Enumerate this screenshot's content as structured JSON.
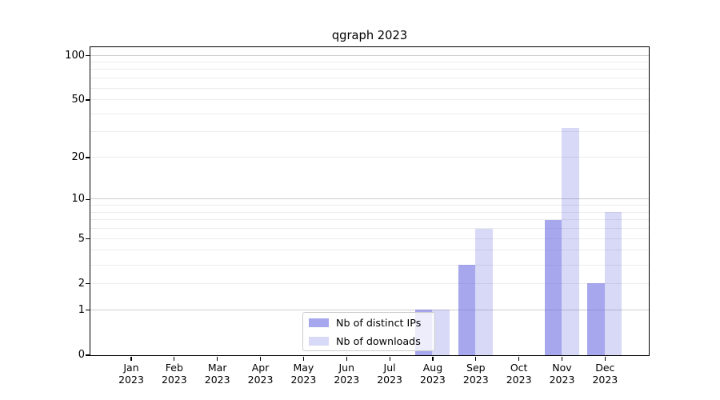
{
  "title": "qgraph 2023",
  "legend": {
    "items": [
      {
        "label": "Nb of distinct IPs",
        "color": "rgba(104,104,226,0.58)"
      },
      {
        "label": "Nb of downloads",
        "color": "rgba(104,104,226,0.26)"
      }
    ]
  },
  "colors": {
    "bar_distinct_ips": "rgba(104,104,226,0.58)",
    "bar_downloads": "rgba(104,104,226,0.26)",
    "grid_major": "#cccccc",
    "grid_minor": "#ebebeb",
    "spine": "#000000",
    "text": "#000000"
  },
  "chart_data": {
    "type": "bar",
    "title": "qgraph 2023",
    "categories": [
      {
        "month": "Jan",
        "year": "2023"
      },
      {
        "month": "Feb",
        "year": "2023"
      },
      {
        "month": "Mar",
        "year": "2023"
      },
      {
        "month": "Apr",
        "year": "2023"
      },
      {
        "month": "May",
        "year": "2023"
      },
      {
        "month": "Jun",
        "year": "2023"
      },
      {
        "month": "Jul",
        "year": "2023"
      },
      {
        "month": "Aug",
        "year": "2023"
      },
      {
        "month": "Sep",
        "year": "2023"
      },
      {
        "month": "Oct",
        "year": "2023"
      },
      {
        "month": "Nov",
        "year": "2023"
      },
      {
        "month": "Dec",
        "year": "2023"
      }
    ],
    "series": [
      {
        "name": "Nb of distinct IPs",
        "values": [
          0,
          0,
          0,
          0,
          0,
          0,
          0,
          1,
          3,
          0,
          7,
          2
        ]
      },
      {
        "name": "Nb of downloads",
        "values": [
          0,
          0,
          0,
          0,
          0,
          0,
          0,
          1,
          6,
          0,
          32,
          8
        ]
      }
    ],
    "xlabel": "",
    "ylabel": "",
    "yscale": "log10(1+v)",
    "ylim": [
      0,
      114
    ],
    "ytick_values": [
      0,
      1,
      2,
      5,
      10,
      20,
      50,
      100
    ],
    "grid_major_values": [
      1,
      10,
      100
    ],
    "grid_minor_values": [
      2,
      3,
      4,
      5,
      6,
      7,
      8,
      9,
      20,
      30,
      40,
      50,
      60,
      70,
      80,
      90
    ],
    "legend_position": "lower center",
    "grid": "horizontal"
  }
}
